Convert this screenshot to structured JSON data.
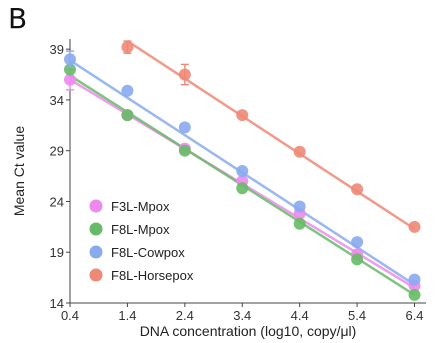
{
  "panel_label": "B",
  "chart_data": {
    "type": "scatter",
    "xlabel": "DNA concentration (log10, copy/μl)",
    "ylabel": "Mean Ct value",
    "xlim": [
      0.4,
      6.6
    ],
    "ylim": [
      14,
      40
    ],
    "x_ticks": [
      "0.4",
      "1.4",
      "2.4",
      "3.4",
      "4.4",
      "5.4",
      "6.4"
    ],
    "y_ticks": [
      "14",
      "19",
      "24",
      "29",
      "34",
      "39"
    ],
    "legend_position": "bottom-left",
    "grid": false,
    "series": [
      {
        "name": "F3L-Mpox",
        "color": "#ee88ee",
        "x": [
          0.4,
          1.4,
          2.4,
          3.4,
          4.4,
          5.4,
          6.4
        ],
        "y": [
          36.0,
          32.5,
          29.2,
          26.0,
          22.8,
          18.8,
          15.7
        ],
        "err": [
          1.0,
          0.3,
          0.3,
          0.3,
          0.3,
          0.3,
          0.3
        ],
        "fit": [
          [
            0.4,
            36.0
          ],
          [
            6.4,
            15.5
          ]
        ]
      },
      {
        "name": "F8L-Mpox",
        "color": "#66bb66",
        "x": [
          0.4,
          1.4,
          2.4,
          3.4,
          4.4,
          5.4,
          6.4
        ],
        "y": [
          37.0,
          32.5,
          29.0,
          25.3,
          21.8,
          18.3,
          14.8
        ],
        "err": [
          0.3,
          0.3,
          0.3,
          0.3,
          0.3,
          0.3,
          0.3
        ],
        "fit": [
          [
            0.4,
            36.4
          ],
          [
            6.4,
            14.8
          ]
        ]
      },
      {
        "name": "F8L-Cowpox",
        "color": "#88aaee",
        "x": [
          0.4,
          1.4,
          2.4,
          3.4,
          4.4,
          5.4,
          6.4
        ],
        "y": [
          38.0,
          34.9,
          31.3,
          27.0,
          23.5,
          20.0,
          16.3
        ],
        "err": [
          0.8,
          0.3,
          0.3,
          0.3,
          0.3,
          0.3,
          0.3
        ],
        "fit": [
          [
            0.4,
            37.9
          ],
          [
            6.4,
            15.8
          ]
        ]
      },
      {
        "name": "F8L-Horsepox",
        "color": "#ee8877",
        "x": [
          1.4,
          2.4,
          3.4,
          4.4,
          5.4,
          6.4
        ],
        "y": [
          39.2,
          36.5,
          32.5,
          28.9,
          25.2,
          21.5
        ],
        "err": [
          0.6,
          1.0,
          0.3,
          0.3,
          0.3,
          0.3
        ],
        "fit": [
          [
            1.4,
            39.8
          ],
          [
            6.4,
            21.3
          ]
        ]
      }
    ]
  }
}
